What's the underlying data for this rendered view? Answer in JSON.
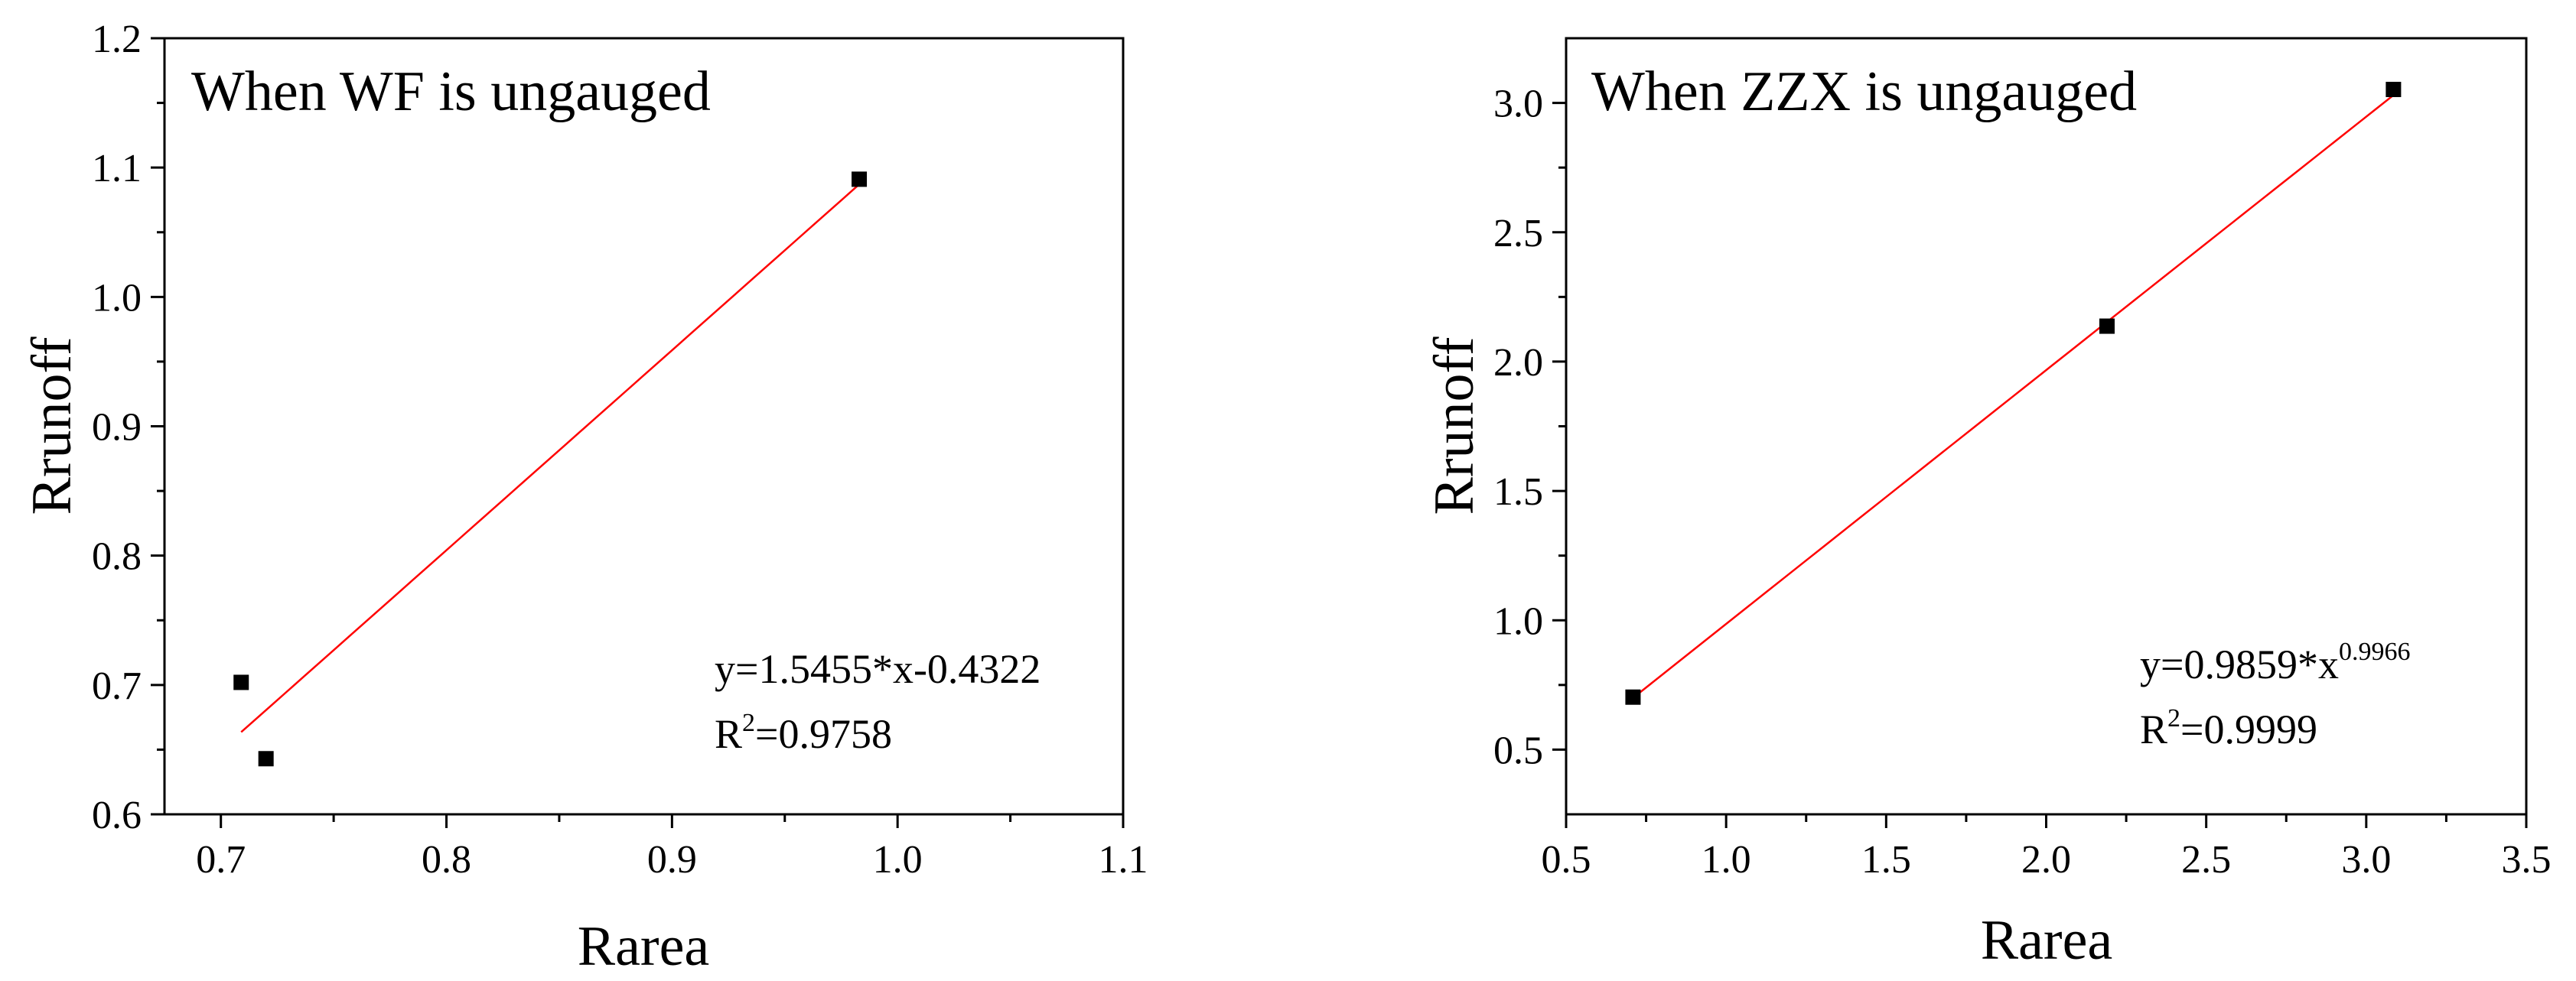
{
  "chart_data": [
    {
      "type": "scatter",
      "title": "When WF is ungauged",
      "xlabel": "Rarea",
      "ylabel": "Rrunoff",
      "xlim": [
        0.675,
        1.1
      ],
      "ylim": [
        0.6,
        1.2
      ],
      "xticks": [
        "0.7",
        "0.8",
        "0.9",
        "1.0",
        "1.1"
      ],
      "yticks": [
        "0.6",
        "0.7",
        "0.8",
        "0.9",
        "1.0",
        "1.1",
        "1.2"
      ],
      "x": [
        0.709,
        0.72,
        0.983
      ],
      "y": [
        0.702,
        0.643,
        1.091
      ],
      "marker_color": "#000000",
      "fit": {
        "kind": "linear",
        "slope": 1.5455,
        "intercept": -0.4322,
        "x_range": [
          0.709,
          0.983
        ],
        "color": "#ff0000",
        "equation_label": "y=1.5455*x-0.4322",
        "r2_prefix": "R",
        "r2_sup": "2",
        "r2_value": "=0.9758"
      },
      "grid": false
    },
    {
      "type": "scatter",
      "title": "When ZZX is ungauged",
      "xlabel": "Rarea",
      "ylabel": "Rrunoff",
      "xlim": [
        0.5,
        3.5
      ],
      "ylim": [
        0.25,
        3.25
      ],
      "xticks": [
        "0.5",
        "1.0",
        "1.5",
        "2.0",
        "2.5",
        "3.0",
        "3.5"
      ],
      "yticks": [
        "0.5",
        "1.0",
        "1.5",
        "2.0",
        "2.5",
        "3.0"
      ],
      "x": [
        0.709,
        2.19,
        3.085
      ],
      "y": [
        0.703,
        2.137,
        3.052
      ],
      "marker_color": "#000000",
      "fit": {
        "kind": "power",
        "coef": 0.9859,
        "exponent": 0.9966,
        "x_range": [
          0.709,
          3.085
        ],
        "color": "#ff0000",
        "equation_prefix": "y=0.9859*x",
        "equation_sup": "0.9966",
        "r2_prefix": "R",
        "r2_sup": "2",
        "r2_value": "=0.9999"
      },
      "grid": false
    }
  ]
}
